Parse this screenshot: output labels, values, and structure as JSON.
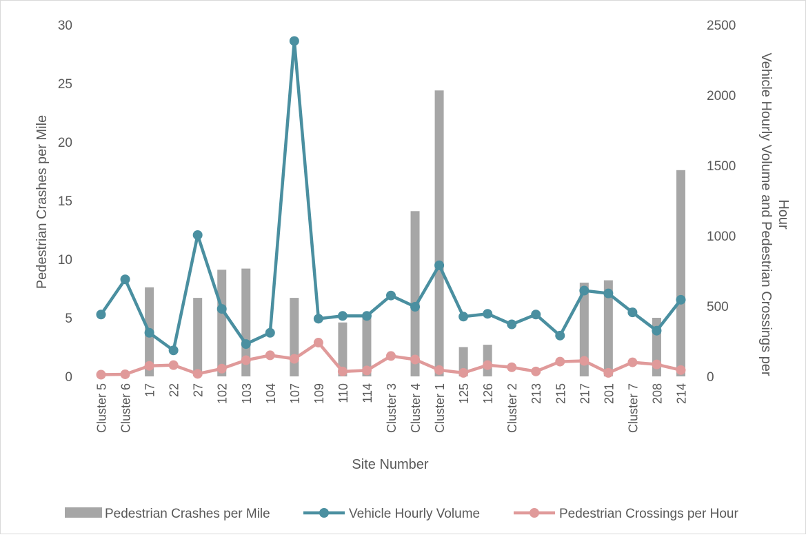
{
  "chart_data": {
    "type": "bar+line",
    "title": "",
    "xlabel": "Site Number",
    "ylabel_left": "Pedestrian Crashes per Mile",
    "ylabel_right": "Vehicle Hourly Volume and Pedestrian Crossings per Hour",
    "ylim_left": [
      0,
      30
    ],
    "ylim_right": [
      0,
      2500
    ],
    "left_ticks": [
      "0",
      "5",
      "10",
      "15",
      "20",
      "25",
      "30"
    ],
    "right_ticks": [
      "0",
      "500",
      "1000",
      "1500",
      "2000",
      "2500"
    ],
    "grid": false,
    "legend_position": "bottom",
    "categories": [
      "Cluster 5",
      "Cluster 6",
      "17",
      "22",
      "27",
      "102",
      "103",
      "104",
      "107",
      "109",
      "110",
      "114",
      "Cluster 3",
      "Cluster 4",
      "Cluster 1",
      "125",
      "126",
      "Cluster 2",
      "213",
      "215",
      "217",
      "201",
      "Cluster 7",
      "208",
      "214"
    ],
    "series": [
      {
        "name": "Pedestrian Crashes per Mile",
        "type": "bar",
        "axis": "left",
        "color": "#a6a6a6",
        "values": [
          0,
          0,
          7.6,
          0,
          6.7,
          9.1,
          9.2,
          0,
          6.7,
          0,
          4.6,
          5.0,
          0,
          14.1,
          24.4,
          2.5,
          2.7,
          0,
          0,
          0,
          8.0,
          8.2,
          0,
          5.0,
          17.6
        ]
      },
      {
        "name": "Vehicle Hourly Volume",
        "type": "line",
        "axis": "right",
        "color": "#4a8fa0",
        "values": [
          440,
          690,
          310,
          185,
          1005,
          480,
          230,
          310,
          2385,
          410,
          430,
          430,
          575,
          495,
          790,
          425,
          445,
          370,
          440,
          290,
          610,
          590,
          455,
          325,
          545
        ]
      },
      {
        "name": "Pedestrian Crossings per Hour",
        "type": "line",
        "axis": "right",
        "color": "#e09a9a",
        "values": [
          12,
          15,
          75,
          80,
          18,
          55,
          115,
          150,
          125,
          240,
          35,
          42,
          145,
          120,
          45,
          25,
          80,
          65,
          35,
          105,
          110,
          25,
          100,
          85,
          45
        ]
      }
    ]
  }
}
